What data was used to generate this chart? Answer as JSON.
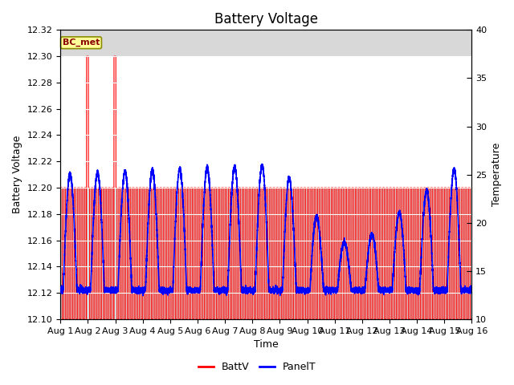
{
  "title": "Battery Voltage",
  "xlabel": "Time",
  "ylabel_left": "Battery Voltage",
  "ylabel_right": "Temperature",
  "xlim": [
    0,
    15
  ],
  "ylim_left": [
    12.1,
    12.32
  ],
  "ylim_right": [
    10,
    40
  ],
  "yticks_left": [
    12.1,
    12.12,
    12.14,
    12.16,
    12.18,
    12.2,
    12.22,
    12.24,
    12.26,
    12.28,
    12.3,
    12.32
  ],
  "yticks_right": [
    10,
    15,
    20,
    25,
    30,
    35,
    40
  ],
  "xtick_labels": [
    "Aug 1",
    "Aug 2",
    "Aug 3",
    "Aug 4",
    "Aug 5",
    "Aug 6",
    "Aug 7",
    "Aug 8",
    "Aug 9",
    "Aug 10",
    "Aug 11",
    "Aug 12",
    "Aug 13",
    "Aug 14",
    "Aug 15",
    "Aug 16"
  ],
  "xtick_positions": [
    0,
    1,
    2,
    3,
    4,
    5,
    6,
    7,
    8,
    9,
    10,
    11,
    12,
    13,
    14,
    15
  ],
  "batt_color": "#FF0000",
  "panel_color": "#0000FF",
  "bg_color": "#FFFFFF",
  "plot_bg_color": "#D8D8D8",
  "white_band_low": 12.2,
  "white_band_high": 12.3,
  "legend_labels": [
    "BattV",
    "PanelT"
  ],
  "station_label": "BC_met",
  "title_fontsize": 12,
  "axis_fontsize": 9,
  "tick_fontsize": 8
}
